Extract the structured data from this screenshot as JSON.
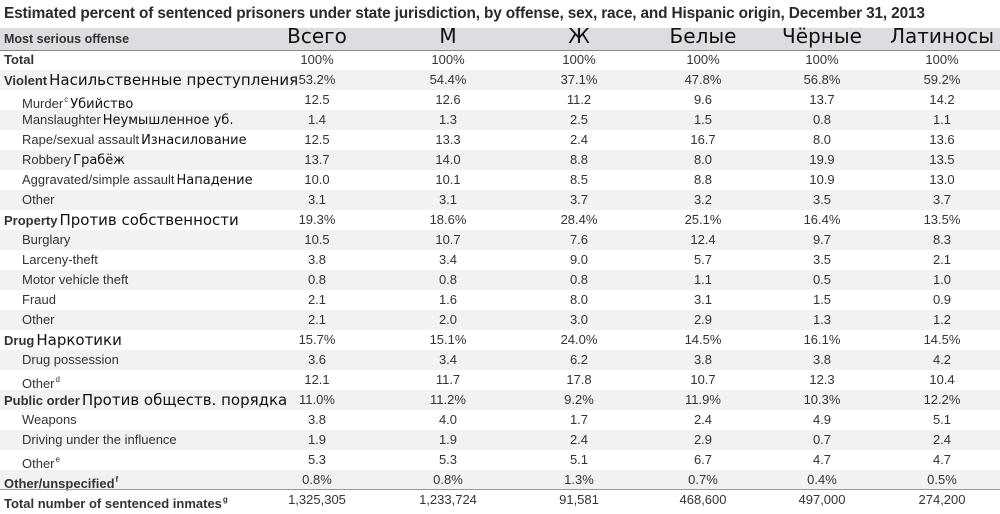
{
  "title": "Estimated percent of sentenced prisoners under state jurisdiction, by offense, sex, race, and Hispanic origin, December 31, 2013",
  "header": {
    "offense_label": "Most serious offense",
    "columns": [
      "Всего",
      "М",
      "Ж",
      "Белые",
      "Чёрные",
      "Латиносы"
    ]
  },
  "rows": [
    {
      "label": "Total",
      "ru": "",
      "sup": "",
      "kind": "main",
      "values": [
        "100%",
        "100%",
        "100%",
        "100%",
        "100%",
        "100%"
      ]
    },
    {
      "label": "Violent",
      "ru": "Насильственные преступления",
      "sup": "",
      "kind": "main",
      "values": [
        "53.2%",
        "54.4%",
        "37.1%",
        "47.8%",
        "56.8%",
        "59.2%"
      ]
    },
    {
      "label": "Murder",
      "ru": "Убийство",
      "sup": "c",
      "kind": "sub",
      "values": [
        "12.5",
        "12.6",
        "11.2",
        "9.6",
        "13.7",
        "14.2"
      ]
    },
    {
      "label": "Manslaughter",
      "ru": "Неумышленное уб.",
      "sup": "",
      "kind": "sub",
      "values": [
        "1.4",
        "1.3",
        "2.5",
        "1.5",
        "0.8",
        "1.1"
      ]
    },
    {
      "label": "Rape/sexual assault",
      "ru": "Изнасилование",
      "sup": "",
      "kind": "sub",
      "values": [
        "12.5",
        "13.3",
        "2.4",
        "16.7",
        "8.0",
        "13.6"
      ]
    },
    {
      "label": "Robbery",
      "ru": "Грабёж",
      "sup": "",
      "kind": "sub",
      "values": [
        "13.7",
        "14.0",
        "8.8",
        "8.0",
        "19.9",
        "13.5"
      ]
    },
    {
      "label": "Aggravated/simple assault",
      "ru": "Нападение",
      "sup": "",
      "kind": "sub",
      "values": [
        "10.0",
        "10.1",
        "8.5",
        "8.8",
        "10.9",
        "13.0"
      ]
    },
    {
      "label": "Other",
      "ru": "",
      "sup": "",
      "kind": "sub",
      "values": [
        "3.1",
        "3.1",
        "3.7",
        "3.2",
        "3.5",
        "3.7"
      ]
    },
    {
      "label": "Property",
      "ru": "Против собственности",
      "sup": "",
      "kind": "main",
      "values": [
        "19.3%",
        "18.6%",
        "28.4%",
        "25.1%",
        "16.4%",
        "13.5%"
      ]
    },
    {
      "label": "Burglary",
      "ru": "",
      "sup": "",
      "kind": "sub",
      "values": [
        "10.5",
        "10.7",
        "7.6",
        "12.4",
        "9.7",
        "8.3"
      ]
    },
    {
      "label": "Larceny-theft",
      "ru": "",
      "sup": "",
      "kind": "sub",
      "values": [
        "3.8",
        "3.4",
        "9.0",
        "5.7",
        "3.5",
        "2.1"
      ]
    },
    {
      "label": "Motor vehicle theft",
      "ru": "",
      "sup": "",
      "kind": "sub",
      "values": [
        "0.8",
        "0.8",
        "0.8",
        "1.1",
        "0.5",
        "1.0"
      ]
    },
    {
      "label": "Fraud",
      "ru": "",
      "sup": "",
      "kind": "sub",
      "values": [
        "2.1",
        "1.6",
        "8.0",
        "3.1",
        "1.5",
        "0.9"
      ]
    },
    {
      "label": "Other",
      "ru": "",
      "sup": "",
      "kind": "sub",
      "values": [
        "2.1",
        "2.0",
        "3.0",
        "2.9",
        "1.3",
        "1.2"
      ]
    },
    {
      "label": "Drug",
      "ru": "Наркотики",
      "sup": "",
      "kind": "main",
      "values": [
        "15.7%",
        "15.1%",
        "24.0%",
        "14.5%",
        "16.1%",
        "14.5%"
      ]
    },
    {
      "label": "Drug possession",
      "ru": "",
      "sup": "",
      "kind": "sub",
      "values": [
        "3.6",
        "3.4",
        "6.2",
        "3.8",
        "3.8",
        "4.2"
      ]
    },
    {
      "label": "Other",
      "ru": "",
      "sup": "d",
      "kind": "sub",
      "values": [
        "12.1",
        "11.7",
        "17.8",
        "10.7",
        "12.3",
        "10.4"
      ]
    },
    {
      "label": "Public order",
      "ru": "Против обществ. порядка",
      "sup": "",
      "kind": "main",
      "values": [
        "11.0%",
        "11.2%",
        "9.2%",
        "11.9%",
        "10.3%",
        "12.2%"
      ]
    },
    {
      "label": "Weapons",
      "ru": "",
      "sup": "",
      "kind": "sub",
      "values": [
        "3.8",
        "4.0",
        "1.7",
        "2.4",
        "4.9",
        "5.1"
      ]
    },
    {
      "label": "Driving under the influence",
      "ru": "",
      "sup": "",
      "kind": "sub",
      "values": [
        "1.9",
        "1.9",
        "2.4",
        "2.9",
        "0.7",
        "2.4"
      ]
    },
    {
      "label": "Other",
      "ru": "",
      "sup": "e",
      "kind": "sub",
      "values": [
        "5.3",
        "5.3",
        "5.1",
        "6.7",
        "4.7",
        "4.7"
      ]
    },
    {
      "label": "Other/unspecified",
      "ru": "",
      "sup": "f",
      "kind": "main",
      "values": [
        "0.8%",
        "0.8%",
        "1.3%",
        "0.7%",
        "0.4%",
        "0.5%"
      ]
    },
    {
      "label": "Total number of sentenced inmates",
      "ru": "",
      "sup": "g",
      "kind": "main",
      "values": [
        "1,325,305",
        "1,233,724",
        "91,581",
        "468,600",
        "497,000",
        "274,200"
      ]
    }
  ]
}
